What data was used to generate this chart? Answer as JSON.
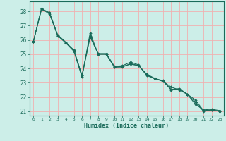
{
  "title": "",
  "xlabel": "Humidex (Indice chaleur)",
  "background_color": "#cceee8",
  "grid_color_major": "#f0b0b0",
  "grid_color_minor": "#f0b0b0",
  "line_color": "#1a6b5a",
  "marker_color": "#1a6b5a",
  "xlim": [
    -0.5,
    23.5
  ],
  "ylim": [
    20.7,
    28.7
  ],
  "yticks": [
    21,
    22,
    23,
    24,
    25,
    26,
    27,
    28
  ],
  "xticks": [
    0,
    1,
    2,
    3,
    4,
    5,
    6,
    7,
    8,
    9,
    10,
    11,
    12,
    13,
    14,
    15,
    16,
    17,
    18,
    19,
    20,
    21,
    22,
    23
  ],
  "series": [
    [
      25.9,
      28.2,
      27.8,
      26.3,
      25.8,
      25.2,
      23.4,
      26.5,
      25.0,
      25.0,
      24.1,
      24.15,
      24.3,
      24.2,
      23.6,
      23.3,
      23.1,
      22.7,
      22.5,
      22.2,
      21.8,
      21.05,
      21.1,
      21.0
    ],
    [
      25.9,
      28.2,
      27.9,
      26.3,
      25.8,
      25.3,
      23.5,
      26.2,
      25.05,
      25.05,
      24.15,
      24.2,
      24.45,
      24.25,
      23.5,
      23.3,
      23.15,
      22.5,
      22.6,
      22.2,
      21.5,
      21.1,
      21.15,
      21.05
    ],
    [
      25.9,
      28.15,
      27.9,
      26.35,
      25.85,
      25.25,
      23.5,
      26.3,
      25.0,
      25.0,
      24.1,
      24.1,
      24.35,
      24.2,
      23.55,
      23.3,
      23.1,
      22.55,
      22.55,
      22.2,
      21.65,
      21.0,
      21.1,
      21.0
    ]
  ]
}
